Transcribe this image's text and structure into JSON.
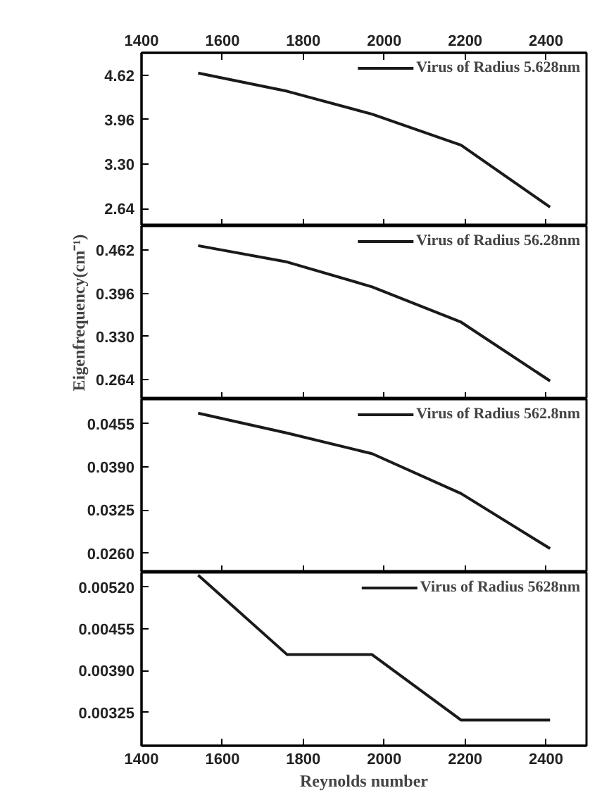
{
  "chart_data": [
    {
      "type": "line",
      "x": [
        1540,
        1760,
        1970,
        2190,
        2410
      ],
      "series": [
        {
          "name": "Virus of Radius 5.628nm",
          "color": "#1a1a1a",
          "values": [
            4.65,
            4.38,
            4.04,
            3.58,
            2.66
          ]
        }
      ],
      "xlim": [
        1400,
        2500
      ],
      "xticks": [
        1400,
        1600,
        1800,
        2000,
        2200,
        2400
      ],
      "x2lim": [
        1400,
        2500
      ],
      "x2ticks": [
        1400,
        1600,
        1800,
        2000,
        2200,
        2400
      ],
      "ylim": [
        2.38,
        4.95
      ],
      "yticks": [
        4.62,
        3.96,
        {
          "value": 3.3,
          "label": "3.30"
        },
        2.64
      ],
      "tick_labels": "y",
      "legend": "top right",
      "grid": false
    },
    {
      "type": "line",
      "x": [
        1540,
        1760,
        1970,
        2190,
        2410
      ],
      "series": [
        {
          "name": "Virus of Radius 56.28nm",
          "color": "#1a1a1a",
          "values": [
            0.469,
            0.444,
            0.406,
            0.352,
            0.262
          ]
        }
      ],
      "xlim": [
        1400,
        2500
      ],
      "xticks": [
        1400,
        1600,
        1800,
        2000,
        2200,
        2400
      ],
      "ylim": [
        0.234,
        0.499
      ],
      "yticks": [
        0.462,
        0.396,
        {
          "value": 0.33,
          "label": "0.330"
        },
        0.264
      ],
      "ylabel": "Eigenfrequency(cm⁻¹)",
      "tick_labels": "y",
      "legend": "top right",
      "grid": false
    },
    {
      "type": "line",
      "x": [
        1540,
        1760,
        1970,
        2190,
        2410
      ],
      "series": [
        {
          "name": "Virus of Radius 562.8nm",
          "color": "#1a1a1a",
          "values": [
            0.0471,
            0.0441,
            0.041,
            0.035,
            0.0267
          ]
        }
      ],
      "xlim": [
        1400,
        2500
      ],
      "xticks": [
        1400,
        1600,
        1800,
        2000,
        2200,
        2400
      ],
      "ylim": [
        0.0231,
        0.0492
      ],
      "yticks": [
        0.0455,
        {
          "value": 0.039,
          "label": "0.0390"
        },
        0.0325,
        {
          "value": 0.026,
          "label": "0.0260"
        }
      ],
      "tick_labels": "y",
      "legend": "top right",
      "grid": false
    },
    {
      "type": "line",
      "x": [
        1540,
        1760,
        1970,
        2190,
        2410
      ],
      "series": [
        {
          "name": "Virus of Radius 5628nm",
          "color": "#1a1a1a",
          "values": [
            0.00539,
            0.00415,
            0.00415,
            0.00313,
            0.00313
          ]
        }
      ],
      "xlim": [
        1400,
        2500
      ],
      "xticks": [
        1400,
        1600,
        1800,
        2000,
        2200,
        2400
      ],
      "ylim": [
        0.00273,
        0.00543
      ],
      "yticks": [
        {
          "value": 0.0052,
          "label": "0.00520"
        },
        0.00455,
        {
          "value": 0.0039,
          "label": "0.00390"
        },
        0.00325
      ],
      "xlabel": "Reynolds number",
      "legend": "top right",
      "grid": false
    }
  ]
}
